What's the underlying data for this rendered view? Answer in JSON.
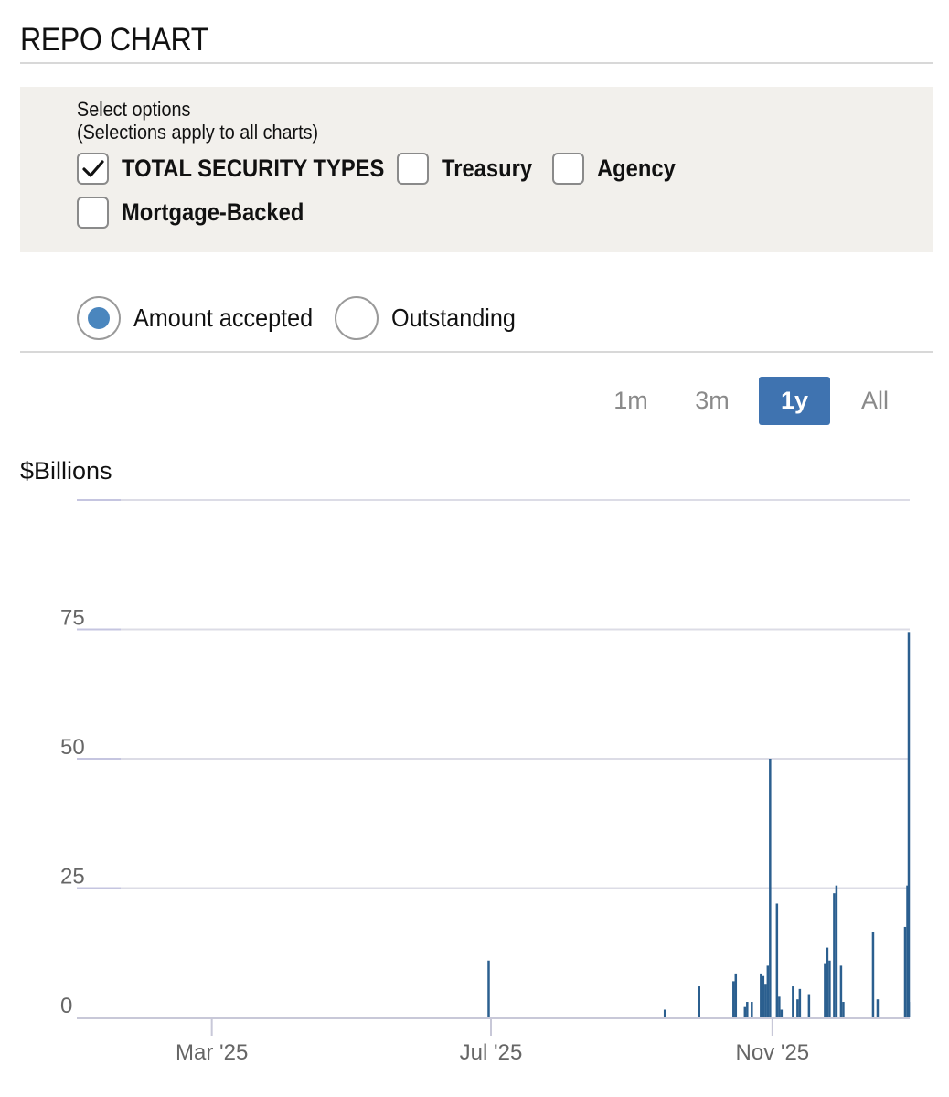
{
  "title": "REPO CHART",
  "options": {
    "heading_line1": "Select options",
    "heading_line2": "(Selections apply to all charts)",
    "checkboxes": [
      {
        "label": "TOTAL SECURITY TYPES",
        "checked": true
      },
      {
        "label": "Treasury",
        "checked": false
      },
      {
        "label": "Agency",
        "checked": false
      },
      {
        "label": "Mortgage-Backed",
        "checked": false
      }
    ]
  },
  "measure": {
    "options": [
      {
        "label": "Amount accepted",
        "selected": true
      },
      {
        "label": "Outstanding",
        "selected": false
      }
    ]
  },
  "range_buttons": [
    {
      "label": "1m",
      "active": false
    },
    {
      "label": "3m",
      "active": false
    },
    {
      "label": "1y",
      "active": true
    },
    {
      "label": "All",
      "active": false
    }
  ],
  "colors": {
    "accent": "#3f73b0",
    "bar": "#2b5f8f",
    "radio_dot": "#4a86be",
    "panel": "#f2f0ec"
  },
  "chart_data": {
    "type": "bar",
    "ylabel": "$Billions",
    "ylim": [
      0,
      100
    ],
    "yticks": [
      0,
      25,
      50,
      75
    ],
    "xlim": [
      "2025-01-01",
      "2025-12-31"
    ],
    "xticks": [
      {
        "date": "2025-03-01",
        "label": "Mar '25"
      },
      {
        "date": "2025-07-01",
        "label": "Jul '25"
      },
      {
        "date": "2025-11-01",
        "label": "Nov '25"
      }
    ],
    "grid": true,
    "x": [
      "2025-06-30",
      "2025-09-15",
      "2025-09-30",
      "2025-10-15",
      "2025-10-16",
      "2025-10-20",
      "2025-10-21",
      "2025-10-23",
      "2025-10-27",
      "2025-10-28",
      "2025-10-29",
      "2025-10-30",
      "2025-10-31",
      "2025-11-03",
      "2025-11-04",
      "2025-11-05",
      "2025-11-10",
      "2025-11-12",
      "2025-11-13",
      "2025-11-17",
      "2025-11-24",
      "2025-11-25",
      "2025-11-26",
      "2025-11-28",
      "2025-11-29",
      "2025-12-01",
      "2025-12-02",
      "2025-12-15",
      "2025-12-17",
      "2025-12-29",
      "2025-12-30",
      "2025-12-31",
      "2026-01-01"
    ],
    "values": [
      11,
      1.5,
      6,
      7,
      8.5,
      2,
      3,
      3,
      8.5,
      8,
      6.5,
      10,
      50,
      22,
      4,
      1.5,
      6,
      3.5,
      5.5,
      4.5,
      10.5,
      13.5,
      11,
      24,
      25.5,
      10,
      3,
      16.5,
      3.5,
      17.5,
      25.5,
      3,
      74.5
    ]
  }
}
